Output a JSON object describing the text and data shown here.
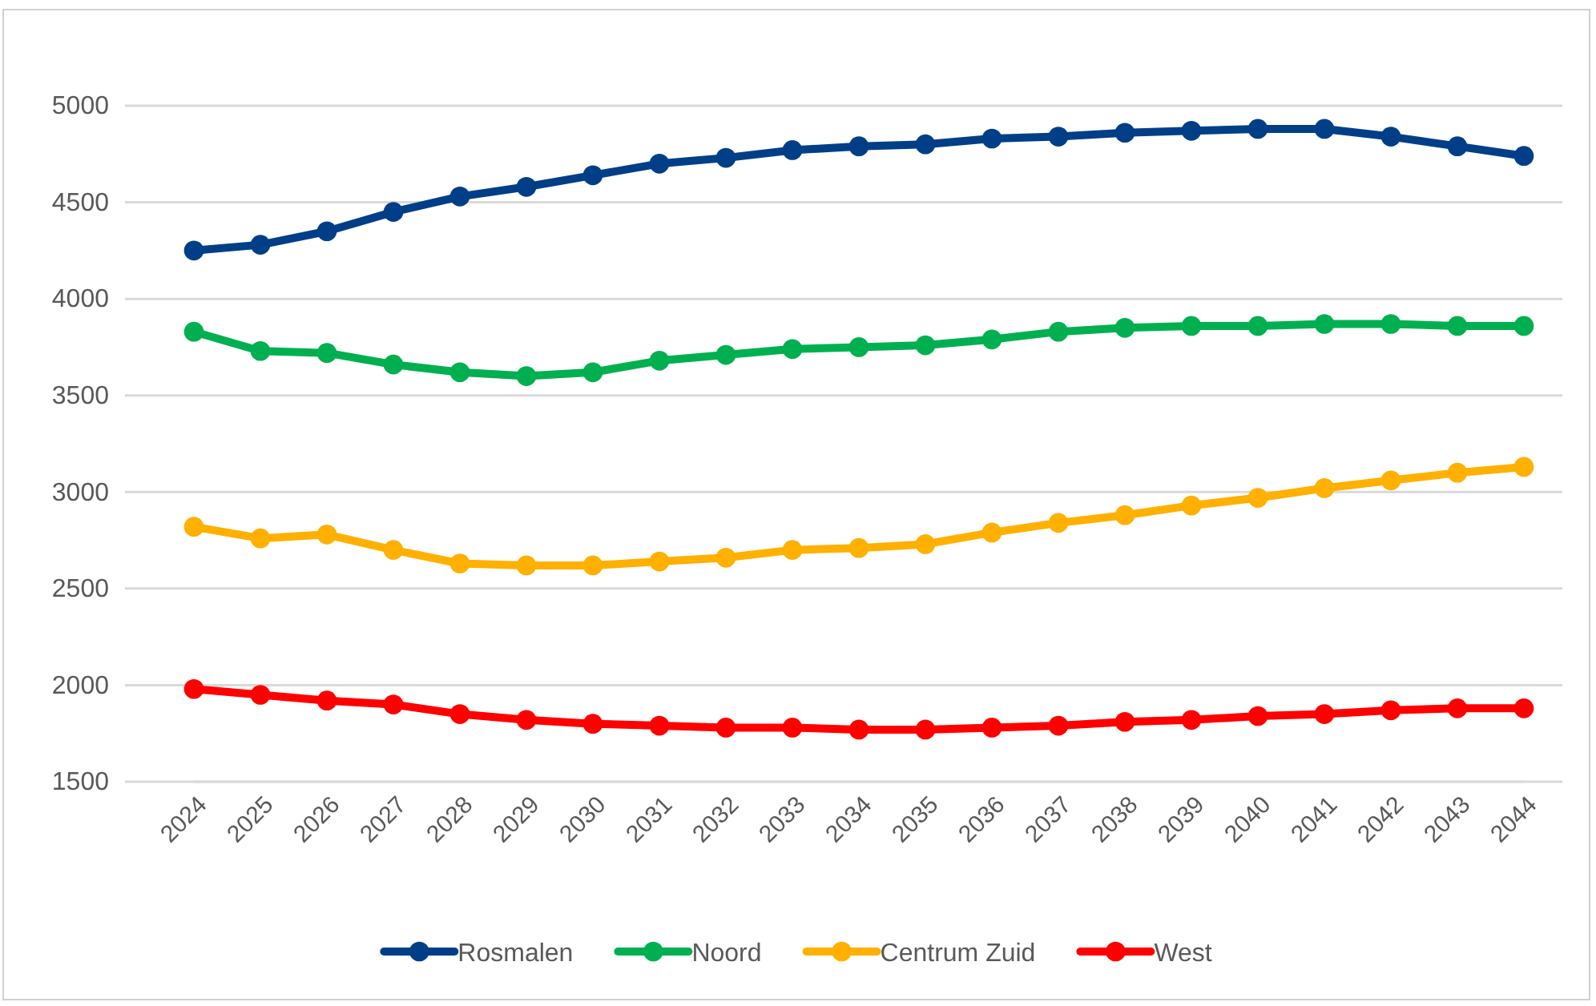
{
  "chart_data": {
    "type": "line",
    "categories": [
      "2024",
      "2025",
      "2026",
      "2027",
      "2028",
      "2029",
      "2030",
      "2031",
      "2032",
      "2033",
      "2034",
      "2035",
      "2036",
      "2037",
      "2038",
      "2039",
      "2040",
      "2041",
      "2042",
      "2043",
      "2044"
    ],
    "series": [
      {
        "name": "Rosmalen",
        "color": "#003f87",
        "values": [
          4250,
          4280,
          4350,
          4450,
          4530,
          4580,
          4640,
          4700,
          4730,
          4770,
          4790,
          4800,
          4830,
          4840,
          4860,
          4870,
          4880,
          4880,
          4840,
          4790,
          4740
        ]
      },
      {
        "name": "Noord",
        "color": "#00b050",
        "values": [
          3830,
          3730,
          3720,
          3660,
          3620,
          3600,
          3620,
          3680,
          3710,
          3740,
          3750,
          3760,
          3790,
          3830,
          3850,
          3860,
          3860,
          3870,
          3870,
          3860,
          3860
        ]
      },
      {
        "name": "Centrum Zuid",
        "color": "#ffb000",
        "values": [
          2820,
          2760,
          2780,
          2700,
          2630,
          2620,
          2620,
          2640,
          2660,
          2700,
          2710,
          2730,
          2790,
          2840,
          2880,
          2930,
          2970,
          3020,
          3060,
          3100,
          3130
        ]
      },
      {
        "name": "West",
        "color": "#ff0000",
        "values": [
          1980,
          1950,
          1920,
          1900,
          1850,
          1820,
          1800,
          1790,
          1780,
          1780,
          1770,
          1770,
          1780,
          1790,
          1810,
          1820,
          1840,
          1850,
          1870,
          1880,
          1880
        ]
      }
    ],
    "ylim": [
      1500,
      5000
    ],
    "yticks": [
      1500,
      2000,
      2500,
      3000,
      3500,
      4000,
      4500,
      5000
    ],
    "grid": "y",
    "legend": "bottom",
    "marker": "circle",
    "line_style": "solid"
  }
}
